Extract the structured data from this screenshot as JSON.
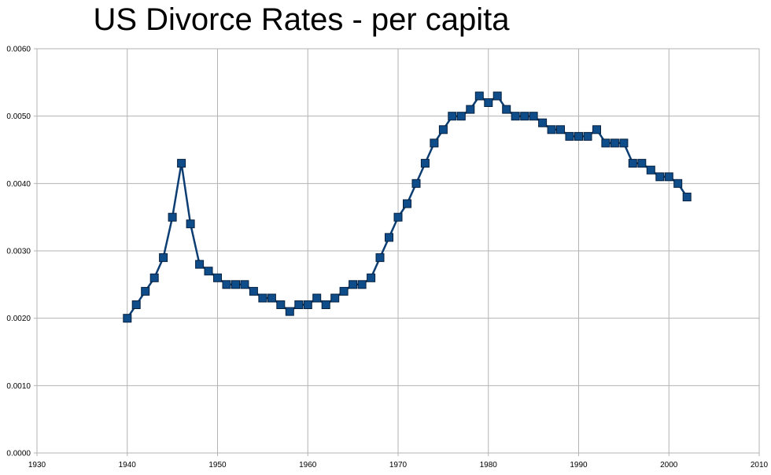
{
  "chart_data": {
    "type": "line",
    "title": "US Divorce Rates - per capita",
    "xlabel": "",
    "ylabel": "",
    "xlim": [
      1930,
      2010
    ],
    "ylim": [
      0.0,
      0.006
    ],
    "x_ticks": [
      "1930",
      "1940",
      "1950",
      "1960",
      "1970",
      "1980",
      "1990",
      "2000",
      "2010"
    ],
    "y_ticks": [
      "0.0000",
      "0.0010",
      "0.0020",
      "0.0030",
      "0.0040",
      "0.0050",
      "0.0060"
    ],
    "grid": true,
    "legend": "none",
    "series": [
      {
        "color": "#0c3d73",
        "marker_fill": "#0f4c8a",
        "marker": "square",
        "x": [
          1940,
          1941,
          1942,
          1943,
          1944,
          1945,
          1946,
          1947,
          1948,
          1949,
          1950,
          1951,
          1952,
          1953,
          1954,
          1955,
          1956,
          1957,
          1958,
          1959,
          1960,
          1961,
          1962,
          1963,
          1964,
          1965,
          1966,
          1967,
          1968,
          1969,
          1970,
          1971,
          1972,
          1973,
          1974,
          1975,
          1976,
          1977,
          1978,
          1979,
          1980,
          1981,
          1982,
          1983,
          1984,
          1985,
          1986,
          1987,
          1988,
          1989,
          1990,
          1991,
          1992,
          1993,
          1994,
          1995,
          1996,
          1997,
          1998,
          1999,
          2000,
          2001,
          2002
        ],
        "y": [
          0.002,
          0.0022,
          0.0024,
          0.0026,
          0.0029,
          0.0035,
          0.0043,
          0.0034,
          0.0028,
          0.0027,
          0.0026,
          0.0025,
          0.0025,
          0.0025,
          0.0024,
          0.0023,
          0.0023,
          0.0022,
          0.0021,
          0.0022,
          0.0022,
          0.0023,
          0.0022,
          0.0023,
          0.0024,
          0.0025,
          0.0025,
          0.0026,
          0.0029,
          0.0032,
          0.0035,
          0.0037,
          0.004,
          0.0043,
          0.0046,
          0.0048,
          0.005,
          0.005,
          0.0051,
          0.0053,
          0.0052,
          0.0053,
          0.0051,
          0.005,
          0.005,
          0.005,
          0.0049,
          0.0048,
          0.0048,
          0.0047,
          0.0047,
          0.0047,
          0.0048,
          0.0046,
          0.0046,
          0.0046,
          0.0043,
          0.0043,
          0.0042,
          0.0041,
          0.0041,
          0.004,
          0.0038
        ]
      }
    ]
  },
  "colors": {
    "background": "#ffffff",
    "grid": "#b3b3b3",
    "axis": "#b3b3b3",
    "text": "#000000"
  }
}
